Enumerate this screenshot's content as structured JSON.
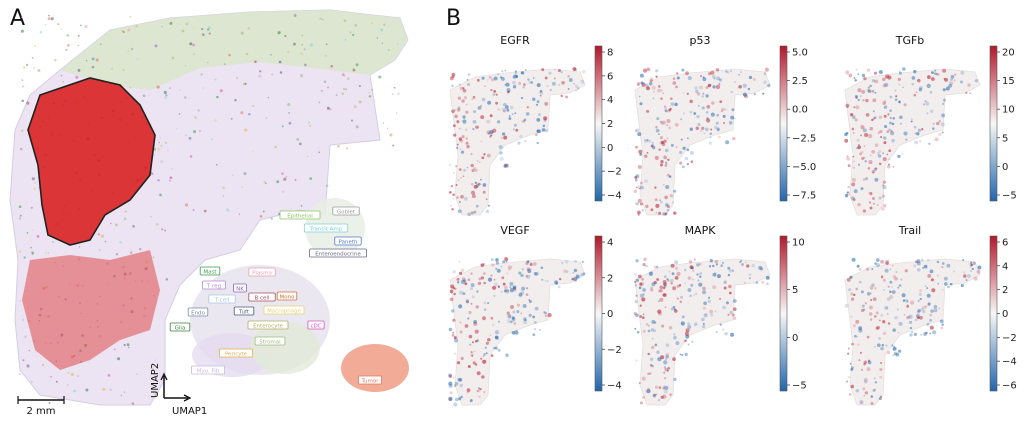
{
  "panel_a": {
    "letter": "A",
    "scale_bar_label": "2 mm",
    "umap_axes": {
      "x": "UMAP1",
      "y": "UMAP2"
    },
    "cell_types": [
      {
        "label": "Epithelial",
        "color": "#8fc46a"
      },
      {
        "label": "Goblet",
        "color": "#9a9a9a"
      },
      {
        "label": "Transit Amp",
        "color": "#7ecfd8"
      },
      {
        "label": "Paneth",
        "color": "#5577c8"
      },
      {
        "label": "Enteroendocrine",
        "color": "#6b6b8a"
      },
      {
        "label": "Mast",
        "color": "#3a9a4a"
      },
      {
        "label": "T reg",
        "color": "#b58ad0"
      },
      {
        "label": "NK",
        "color": "#8a62b8"
      },
      {
        "label": "Plasma",
        "color": "#e8a0b0"
      },
      {
        "label": "T cell",
        "color": "#a8c8e8"
      },
      {
        "label": "B cell",
        "color": "#a05060"
      },
      {
        "label": "Mono",
        "color": "#d07030"
      },
      {
        "label": "Endo",
        "color": "#7a8aa8"
      },
      {
        "label": "Tuft",
        "color": "#4a5a7a"
      },
      {
        "label": "Macrophage",
        "color": "#e8d070"
      },
      {
        "label": "Glia",
        "color": "#3f7f3f"
      },
      {
        "label": "Enterocyte",
        "color": "#b0b060"
      },
      {
        "label": "cDC",
        "color": "#d850c0"
      },
      {
        "label": "Stromal",
        "color": "#a0b880"
      },
      {
        "label": "Pericyte",
        "color": "#e0b050"
      },
      {
        "label": "Myo. Fib",
        "color": "#c8b8e0"
      },
      {
        "label": "Tumor",
        "color": "#e07860"
      }
    ]
  },
  "panel_b": {
    "letter": "B",
    "colors": {
      "high": "#b2182b",
      "mid": "#f7f7f7",
      "low": "#2166ac"
    },
    "maps": [
      {
        "title": "EGFR",
        "ticks": [
          "8",
          "6",
          "4",
          "2",
          "0",
          "−2",
          "−4"
        ]
      },
      {
        "title": "p53",
        "ticks": [
          "5.0",
          "2.5",
          "0.0",
          "−2.5",
          "−5.0",
          "−7.5"
        ]
      },
      {
        "title": "TGFb",
        "ticks": [
          "20",
          "15",
          "10",
          "5",
          "0",
          "−5"
        ]
      },
      {
        "title": "VEGF",
        "ticks": [
          "4",
          "2",
          "0",
          "−2",
          "−4"
        ]
      },
      {
        "title": "MAPK",
        "ticks": [
          "10",
          "5",
          "0",
          "−5"
        ]
      },
      {
        "title": "Trail",
        "ticks": [
          "6",
          "4",
          "2",
          "0",
          "−2",
          "−4",
          "−6"
        ]
      }
    ]
  }
}
